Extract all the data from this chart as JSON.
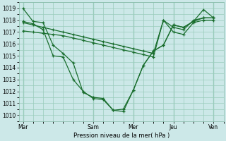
{
  "xlabel": "Pression niveau de la mer( hPa )",
  "bg_color": "#cce8e8",
  "grid_color": "#99ccbb",
  "line_color": "#1a6e2e",
  "ylim": [
    1009.5,
    1019.5
  ],
  "yticks": [
    1010,
    1011,
    1012,
    1013,
    1014,
    1015,
    1016,
    1017,
    1018,
    1019
  ],
  "xtick_labels": [
    "Mar",
    "Sam",
    "Mer",
    "Jeu",
    "Ven"
  ],
  "xtick_positions": [
    0.0,
    3.5,
    5.5,
    7.5,
    9.5
  ],
  "xlim": [
    -0.2,
    10.0
  ],
  "series": [
    {
      "x": [
        0,
        0.5,
        1.0,
        1.5,
        2.0,
        2.5,
        3.0,
        3.5,
        4.0,
        4.5,
        5.0,
        5.5,
        6.0,
        6.5,
        7.0,
        7.5,
        8.0,
        8.5,
        9.0,
        9.5
      ],
      "y": [
        1019.0,
        1017.9,
        1017.8,
        1015.9,
        1015.2,
        1014.4,
        1011.9,
        1011.5,
        1011.4,
        1010.4,
        1010.3,
        1012.1,
        1014.2,
        1015.4,
        1015.9,
        1017.6,
        1017.4,
        1017.9,
        1018.9,
        1018.2
      ]
    },
    {
      "x": [
        0,
        0.5,
        1.0,
        1.5,
        2.0,
        2.5,
        3.0,
        3.5,
        4.0,
        4.5,
        5.0,
        5.5,
        6.0,
        6.5,
        7.0,
        7.5,
        8.0,
        8.5,
        9.0,
        9.5
      ],
      "y": [
        1017.9,
        1017.7,
        1017.2,
        1015.0,
        1014.9,
        1013.0,
        1012.0,
        1011.4,
        1011.3,
        1010.4,
        1010.5,
        1012.1,
        1014.2,
        1015.4,
        1015.9,
        1017.6,
        1017.4,
        1017.9,
        1018.2,
        1018.2
      ]
    },
    {
      "x": [
        0,
        0.5,
        1.0,
        1.5,
        2.0,
        2.5,
        3.0,
        3.5,
        4.0,
        4.5,
        5.0,
        5.5,
        6.0,
        6.5,
        7.0,
        7.5,
        8.0,
        8.5,
        9.0,
        9.5
      ],
      "y": [
        1017.8,
        1017.6,
        1017.4,
        1017.2,
        1017.0,
        1016.8,
        1016.6,
        1016.4,
        1016.2,
        1016.0,
        1015.8,
        1015.6,
        1015.4,
        1015.2,
        1018.0,
        1017.4,
        1017.2,
        1018.0,
        1018.2,
        1018.2
      ]
    },
    {
      "x": [
        0,
        0.5,
        1.0,
        1.5,
        2.0,
        2.5,
        3.0,
        3.5,
        4.0,
        4.5,
        5.0,
        5.5,
        6.0,
        6.5,
        7.0,
        7.5,
        8.0,
        8.5,
        9.0,
        9.5
      ],
      "y": [
        1017.1,
        1017.0,
        1016.9,
        1016.8,
        1016.7,
        1016.5,
        1016.3,
        1016.1,
        1015.9,
        1015.7,
        1015.5,
        1015.3,
        1015.1,
        1014.9,
        1018.0,
        1017.0,
        1016.8,
        1017.8,
        1018.0,
        1018.0
      ]
    }
  ]
}
